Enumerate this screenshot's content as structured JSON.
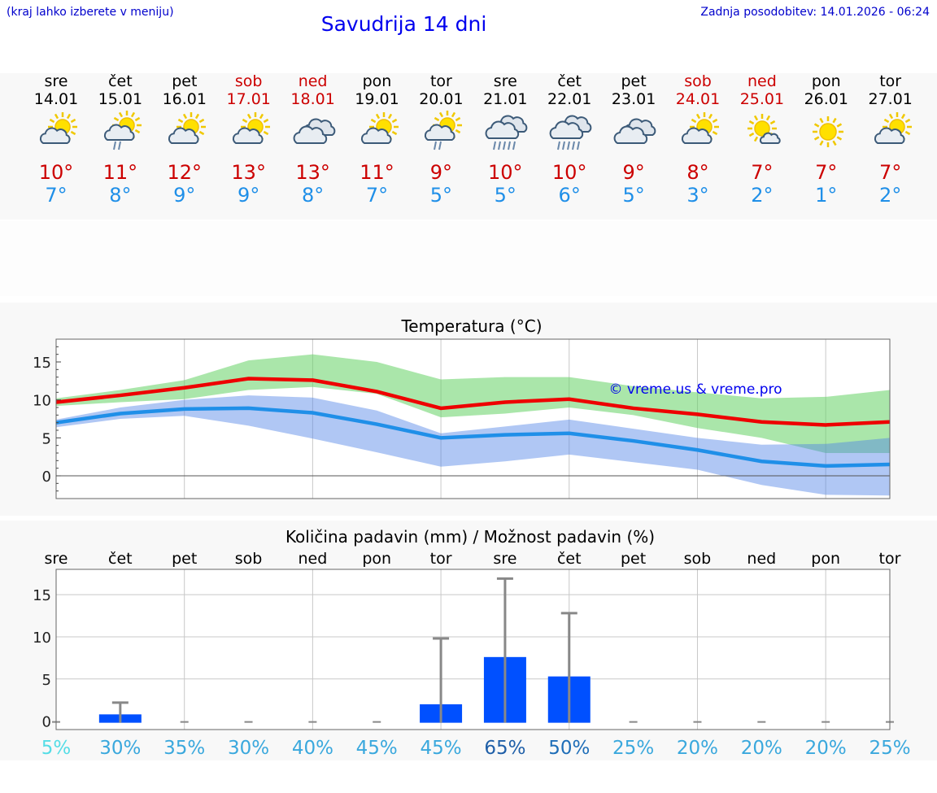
{
  "header": {
    "location_hint": "(kraj lahko izberete v meniju)",
    "title": "Savudrija 14 dni",
    "updated": "Zadnja posodobitev: 14.01.2026 - 06:24"
  },
  "colors": {
    "max": "#cc0000",
    "min": "#1f8fe8",
    "bar": "#0050ff",
    "title": "#0000ee"
  },
  "days": [
    {
      "name": "sre",
      "date": "14.01",
      "weekend": false,
      "icon": "sun-cloud-icon",
      "max": "10°",
      "min": "7°"
    },
    {
      "name": "čet",
      "date": "15.01",
      "weekend": false,
      "icon": "sun-cloud-rain-icon",
      "max": "11°",
      "min": "8°"
    },
    {
      "name": "pet",
      "date": "16.01",
      "weekend": false,
      "icon": "sun-cloud-icon",
      "max": "12°",
      "min": "9°"
    },
    {
      "name": "sob",
      "date": "17.01",
      "weekend": true,
      "icon": "sun-cloud-icon",
      "max": "13°",
      "min": "9°"
    },
    {
      "name": "ned",
      "date": "18.01",
      "weekend": true,
      "icon": "cloudy-icon",
      "max": "13°",
      "min": "8°"
    },
    {
      "name": "pon",
      "date": "19.01",
      "weekend": false,
      "icon": "sun-cloud-icon",
      "max": "11°",
      "min": "7°"
    },
    {
      "name": "tor",
      "date": "20.01",
      "weekend": false,
      "icon": "sun-cloud-rain-icon",
      "max": "9°",
      "min": "5°"
    },
    {
      "name": "sre",
      "date": "21.01",
      "weekend": false,
      "icon": "cloud-heavy-rain-icon",
      "max": "10°",
      "min": "5°"
    },
    {
      "name": "čet",
      "date": "22.01",
      "weekend": false,
      "icon": "cloud-heavy-rain-icon",
      "max": "10°",
      "min": "6°"
    },
    {
      "name": "pet",
      "date": "23.01",
      "weekend": false,
      "icon": "cloudy-icon",
      "max": "9°",
      "min": "5°"
    },
    {
      "name": "sob",
      "date": "24.01",
      "weekend": true,
      "icon": "sun-cloud-icon",
      "max": "8°",
      "min": "3°"
    },
    {
      "name": "ned",
      "date": "25.01",
      "weekend": true,
      "icon": "sun-small-cloud-icon",
      "max": "7°",
      "min": "2°"
    },
    {
      "name": "pon",
      "date": "26.01",
      "weekend": false,
      "icon": "sun-icon",
      "max": "7°",
      "min": "1°"
    },
    {
      "name": "tor",
      "date": "27.01",
      "weekend": false,
      "icon": "sun-cloud-icon",
      "max": "7°",
      "min": "2°"
    }
  ],
  "chart_data": [
    {
      "type": "line",
      "title": "Temperatura (°C)",
      "watermark": "© vreme.us & vreme.pro",
      "ylim": [
        -3,
        18
      ],
      "yticks": [
        0,
        5,
        10,
        15
      ],
      "x": [
        0,
        1,
        2,
        3,
        4,
        5,
        6,
        7,
        8,
        9,
        10,
        11,
        12,
        13
      ],
      "series": [
        {
          "name": "max",
          "values": [
            9.7,
            10.6,
            11.6,
            12.8,
            12.6,
            11.1,
            8.9,
            9.7,
            10.1,
            8.9,
            8.1,
            7.1,
            6.7,
            7.1
          ]
        },
        {
          "name": "min",
          "values": [
            7.0,
            8.2,
            8.8,
            8.9,
            8.3,
            6.8,
            5.0,
            5.4,
            5.6,
            4.6,
            3.4,
            1.9,
            1.3,
            1.5
          ]
        },
        {
          "name": "max_range_upper",
          "values": [
            10.2,
            11.3,
            12.6,
            15.2,
            16.0,
            15.0,
            12.7,
            13.0,
            13.0,
            11.8,
            11.0,
            10.2,
            10.4,
            11.3
          ]
        },
        {
          "name": "max_range_lower",
          "values": [
            9.2,
            9.7,
            10.1,
            11.3,
            11.7,
            10.8,
            7.7,
            8.2,
            9.0,
            8.0,
            6.3,
            5.0,
            3.0,
            3.0
          ]
        },
        {
          "name": "min_range_upper",
          "values": [
            7.4,
            9.0,
            10.0,
            10.6,
            10.3,
            8.6,
            5.6,
            6.5,
            7.4,
            6.2,
            5.0,
            4.1,
            4.2,
            5.0
          ]
        },
        {
          "name": "min_range_lower",
          "values": [
            6.4,
            7.5,
            7.9,
            6.6,
            4.9,
            3.1,
            1.2,
            1.9,
            2.8,
            1.8,
            0.8,
            -1.2,
            -2.5,
            -2.6
          ]
        }
      ]
    },
    {
      "type": "bar",
      "title": "Količina padavin (mm) / Možnost padavin (%)",
      "ylim": [
        -1,
        18
      ],
      "yticks": [
        0,
        5,
        10,
        15
      ],
      "categories": [
        "sre",
        "čet",
        "pet",
        "sob",
        "ned",
        "pon",
        "tor",
        "sre",
        "čet",
        "pet",
        "sob",
        "ned",
        "pon",
        "tor"
      ],
      "values": [
        0,
        0.8,
        0,
        0,
        0,
        0,
        2.0,
        7.6,
        5.3,
        0,
        0,
        0,
        0,
        0
      ],
      "errors_upper": [
        0,
        2.2,
        0,
        0,
        0,
        0,
        9.8,
        16.9,
        12.8,
        0,
        0,
        0,
        0,
        0
      ],
      "probability": [
        "5%",
        "30%",
        "35%",
        "30%",
        "40%",
        "45%",
        "45%",
        "65%",
        "50%",
        "25%",
        "20%",
        "20%",
        "20%",
        "25%"
      ],
      "probability_colors": [
        "#55dde6",
        "#3aa8dd",
        "#3aa8dd",
        "#3aa8dd",
        "#3aa8dd",
        "#3aa8dd",
        "#3aa8dd",
        "#1f5fa8",
        "#1f6eb8",
        "#3aa8dd",
        "#3aa8dd",
        "#3aa8dd",
        "#3aa8dd",
        "#3aa8dd"
      ]
    }
  ]
}
